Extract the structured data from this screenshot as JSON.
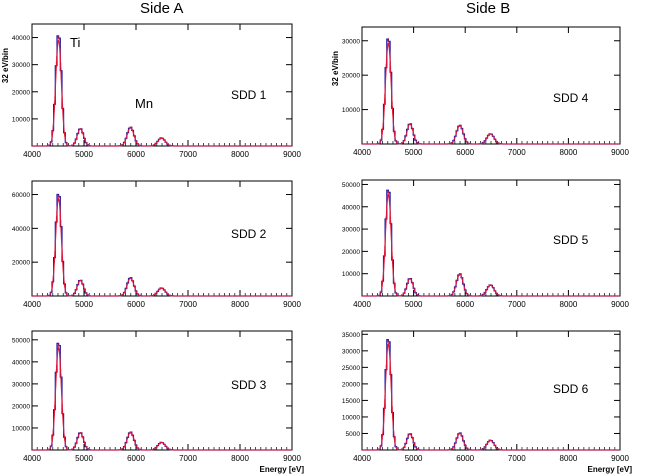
{
  "header": {
    "side_a": "Side A",
    "side_b": "Side B"
  },
  "axis_text": {
    "ylabel": "32 eV/bin",
    "xlabel": "Energy [eV]"
  },
  "peak_labels": {
    "ti": "Ti",
    "mn": "Mn"
  },
  "colors": {
    "histogram": "#1a1aa6",
    "fit": "#e0173a",
    "axes": "#000000"
  },
  "chart_data": [
    {
      "type": "line",
      "title": "SDD 1",
      "side": "Side A",
      "xlim": [
        4000,
        9000
      ],
      "ylim": [
        0,
        45000
      ],
      "xticks": [
        4000,
        5000,
        6000,
        7000,
        8000,
        9000
      ],
      "yticks": [
        10000,
        20000,
        30000,
        40000
      ],
      "ylabel": "32 eV/bin",
      "xlabel": "",
      "annotations": [
        "Ti",
        "Mn"
      ],
      "peaks": [
        {
          "energy": 4510,
          "height": 42000,
          "sigma": 55
        },
        {
          "energy": 4930,
          "height": 6500,
          "sigma": 60
        },
        {
          "energy": 5895,
          "height": 7000,
          "sigma": 65
        },
        {
          "energy": 6490,
          "height": 3000,
          "sigma": 70
        }
      ],
      "series": [
        {
          "values": "histogram"
        },
        {
          "values": "fit"
        }
      ]
    },
    {
      "type": "line",
      "title": "SDD 2",
      "side": "Side A",
      "xlim": [
        4000,
        9000
      ],
      "ylim": [
        0,
        68000
      ],
      "xticks": [
        4000,
        5000,
        6000,
        7000,
        8000,
        9000
      ],
      "yticks": [
        20000,
        40000,
        60000
      ],
      "ylabel": "",
      "xlabel": "",
      "peaks": [
        {
          "energy": 4510,
          "height": 62000,
          "sigma": 55
        },
        {
          "energy": 4930,
          "height": 9500,
          "sigma": 60
        },
        {
          "energy": 5895,
          "height": 11000,
          "sigma": 65
        },
        {
          "energy": 6490,
          "height": 4800,
          "sigma": 70
        }
      ]
    },
    {
      "type": "line",
      "title": "SDD 3",
      "side": "Side A",
      "xlim": [
        4000,
        9000
      ],
      "ylim": [
        0,
        54000
      ],
      "xticks": [
        4000,
        5000,
        6000,
        7000,
        8000,
        9000
      ],
      "yticks": [
        10000,
        20000,
        30000,
        40000,
        50000
      ],
      "ylabel": "",
      "xlabel": "Energy [eV]",
      "peaks": [
        {
          "energy": 4510,
          "height": 50000,
          "sigma": 55
        },
        {
          "energy": 4930,
          "height": 8000,
          "sigma": 60
        },
        {
          "energy": 5895,
          "height": 8200,
          "sigma": 65
        },
        {
          "energy": 6490,
          "height": 3500,
          "sigma": 70
        }
      ]
    },
    {
      "type": "line",
      "title": "SDD 4",
      "side": "Side B",
      "xlim": [
        4000,
        9000
      ],
      "ylim": [
        0,
        34000
      ],
      "xticks": [
        4000,
        5000,
        6000,
        7000,
        8000,
        9000
      ],
      "yticks": [
        10000,
        20000,
        30000
      ],
      "ylabel": "32 eV/bin",
      "xlabel": "",
      "peaks": [
        {
          "energy": 4510,
          "height": 31500,
          "sigma": 55
        },
        {
          "energy": 4930,
          "height": 6000,
          "sigma": 60
        },
        {
          "energy": 5895,
          "height": 5500,
          "sigma": 65
        },
        {
          "energy": 6490,
          "height": 3000,
          "sigma": 70
        }
      ]
    },
    {
      "type": "line",
      "title": "SDD 5",
      "side": "Side B",
      "xlim": [
        4000,
        9000
      ],
      "ylim": [
        0,
        52000
      ],
      "xticks": [
        4000,
        5000,
        6000,
        7000,
        8000,
        9000
      ],
      "yticks": [
        10000,
        20000,
        30000,
        40000,
        50000
      ],
      "ylabel": "",
      "xlabel": "",
      "peaks": [
        {
          "energy": 4510,
          "height": 49000,
          "sigma": 55
        },
        {
          "energy": 4930,
          "height": 8000,
          "sigma": 60
        },
        {
          "energy": 5895,
          "height": 10000,
          "sigma": 65
        },
        {
          "energy": 6490,
          "height": 5000,
          "sigma": 70
        }
      ]
    },
    {
      "type": "line",
      "title": "SDD 6",
      "side": "Side B",
      "xlim": [
        4000,
        9000
      ],
      "ylim": [
        0,
        36000
      ],
      "xticks": [
        4000,
        5000,
        6000,
        7000,
        8000,
        9000
      ],
      "yticks": [
        5000,
        10000,
        15000,
        20000,
        25000,
        30000,
        35000
      ],
      "ylabel": "",
      "xlabel": "Energy [eV]",
      "peaks": [
        {
          "energy": 4510,
          "height": 34500,
          "sigma": 55
        },
        {
          "energy": 4930,
          "height": 5000,
          "sigma": 60
        },
        {
          "energy": 5895,
          "height": 5200,
          "sigma": 65
        },
        {
          "energy": 6490,
          "height": 3000,
          "sigma": 70
        }
      ]
    }
  ]
}
